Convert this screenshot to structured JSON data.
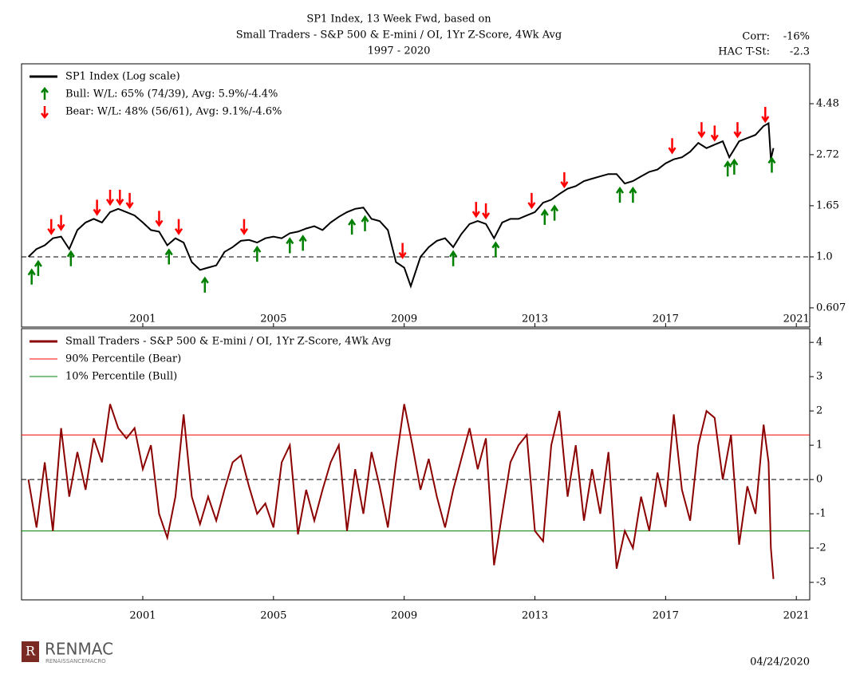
{
  "header": {
    "title": [
      "SP1 Index, 13 Week Fwd, based on",
      "Small Traders - S&P 500 & E-mini / OI, 1Yr Z-Score, 4Wk Avg",
      "1997 - 2020"
    ],
    "stats": [
      {
        "label": "Corr:",
        "value": "-16%"
      },
      {
        "label": "HAC T-St:",
        "value": "-2.3"
      }
    ]
  },
  "chart_data": [
    {
      "type": "line",
      "log_scale": true,
      "xlim": [
        1997.29,
        2021.41
      ],
      "ylim": [
        0.503,
        6.62
      ],
      "xticks": [
        2001,
        2005,
        2009,
        2013,
        2017,
        2021
      ],
      "yticks": [
        0.607,
        {
          "value": 1,
          "label": "1.0"
        },
        1.65,
        2.72,
        4.48
      ],
      "reference_line": 1,
      "legend": "upper left",
      "series": [
        {
          "name": "SP1 Index (Log scale)",
          "color": "#000000",
          "marker": "line",
          "x": [
            1997.5,
            1997.75,
            1998.0,
            1998.25,
            1998.5,
            1998.75,
            1999.0,
            1999.25,
            1999.5,
            1999.75,
            2000.0,
            2000.25,
            2000.5,
            2000.75,
            2001.0,
            2001.25,
            2001.5,
            2001.75,
            2002.0,
            2002.25,
            2002.5,
            2002.75,
            2003.0,
            2003.25,
            2003.5,
            2003.75,
            2004.0,
            2004.25,
            2004.5,
            2004.75,
            2005.0,
            2005.25,
            2005.5,
            2005.75,
            2006.0,
            2006.25,
            2006.5,
            2006.75,
            2007.0,
            2007.25,
            2007.5,
            2007.75,
            2008.0,
            2008.25,
            2008.5,
            2008.75,
            2009.0,
            2009.2,
            2009.5,
            2009.75,
            2010.0,
            2010.25,
            2010.5,
            2010.75,
            2011.0,
            2011.25,
            2011.5,
            2011.75,
            2012.0,
            2012.25,
            2012.5,
            2012.75,
            2013.0,
            2013.25,
            2013.5,
            2013.75,
            2014.0,
            2014.25,
            2014.5,
            2014.75,
            2015.0,
            2015.25,
            2015.5,
            2015.75,
            2016.0,
            2016.25,
            2016.5,
            2016.75,
            2017.0,
            2017.25,
            2017.5,
            2017.75,
            2018.0,
            2018.25,
            2018.5,
            2018.75,
            2018.95,
            2019.25,
            2019.5,
            2019.75,
            2020.0,
            2020.15,
            2020.22,
            2020.3
          ],
          "values": [
            1.0,
            1.08,
            1.12,
            1.2,
            1.22,
            1.08,
            1.3,
            1.4,
            1.45,
            1.4,
            1.55,
            1.6,
            1.55,
            1.5,
            1.4,
            1.3,
            1.28,
            1.12,
            1.2,
            1.15,
            0.95,
            0.88,
            0.9,
            0.92,
            1.05,
            1.1,
            1.17,
            1.18,
            1.15,
            1.2,
            1.22,
            1.2,
            1.26,
            1.28,
            1.32,
            1.35,
            1.3,
            1.4,
            1.48,
            1.55,
            1.6,
            1.62,
            1.45,
            1.42,
            1.3,
            0.95,
            0.9,
            0.75,
            1.0,
            1.1,
            1.17,
            1.2,
            1.1,
            1.25,
            1.38,
            1.42,
            1.38,
            1.2,
            1.4,
            1.45,
            1.45,
            1.5,
            1.55,
            1.7,
            1.75,
            1.85,
            1.95,
            2.0,
            2.1,
            2.15,
            2.2,
            2.25,
            2.25,
            2.05,
            2.1,
            2.2,
            2.3,
            2.35,
            2.5,
            2.6,
            2.65,
            2.8,
            3.05,
            2.9,
            3.0,
            3.1,
            2.65,
            3.1,
            3.2,
            3.3,
            3.6,
            3.7,
            2.6,
            2.9
          ]
        },
        {
          "name": "Bull:   W/L: 65% (74/39), Avg: 5.9%/-4.4%",
          "color": "#008000",
          "marker": "arrow-up",
          "x": [
            1997.6,
            1997.8,
            1998.8,
            2001.8,
            2002.9,
            2004.5,
            2005.5,
            2005.9,
            2007.4,
            2007.8,
            2010.5,
            2011.8,
            2013.3,
            2013.6,
            2015.6,
            2016.0,
            2018.9,
            2019.1,
            2020.25
          ],
          "values": [
            0.92,
            1.0,
            1.1,
            1.12,
            0.85,
            1.15,
            1.25,
            1.28,
            1.5,
            1.55,
            1.1,
            1.2,
            1.65,
            1.72,
            2.05,
            2.05,
            2.65,
            2.7,
            2.75
          ]
        },
        {
          "name": "Bear:   W/L: 48% (56/61), Avg: 9.1%/-4.6%",
          "color": "#ff0000",
          "marker": "arrow-down",
          "x": [
            1998.2,
            1998.5,
            1999.6,
            2000.0,
            2000.3,
            2000.6,
            2001.5,
            2002.1,
            2004.1,
            2008.95,
            2011.2,
            2011.5,
            2012.9,
            2013.9,
            2017.2,
            2018.1,
            2018.5,
            2019.2,
            2020.05
          ],
          "values": [
            1.2,
            1.25,
            1.45,
            1.6,
            1.6,
            1.55,
            1.3,
            1.2,
            1.2,
            0.95,
            1.42,
            1.4,
            1.55,
            1.9,
            2.65,
            3.1,
            3.0,
            3.1,
            3.6
          ]
        }
      ]
    },
    {
      "type": "line",
      "xlim": [
        1997.29,
        2021.41
      ],
      "ylim": [
        -3.51,
        4.4
      ],
      "xticks": [
        2001,
        2005,
        2009,
        2013,
        2017,
        2021
      ],
      "yticks": [
        -3,
        -2,
        -1,
        0,
        1,
        2,
        3,
        4
      ],
      "reference_line": 0,
      "legend": "upper left",
      "series": [
        {
          "name": "Small Traders - S&P 500 & E-mini / OI, 1Yr Z-Score, 4Wk Avg",
          "color": "#8b0000",
          "marker": "line",
          "x": [
            1997.5,
            1997.75,
            1998.0,
            1998.25,
            1998.5,
            1998.75,
            1999.0,
            1999.25,
            1999.5,
            1999.75,
            2000.0,
            2000.25,
            2000.5,
            2000.75,
            2001.0,
            2001.25,
            2001.5,
            2001.75,
            2002.0,
            2002.25,
            2002.5,
            2002.75,
            2003.0,
            2003.25,
            2003.5,
            2003.75,
            2004.0,
            2004.25,
            2004.5,
            2004.75,
            2005.0,
            2005.25,
            2005.5,
            2005.75,
            2006.0,
            2006.25,
            2006.5,
            2006.75,
            2007.0,
            2007.25,
            2007.5,
            2007.75,
            2008.0,
            2008.25,
            2008.5,
            2008.75,
            2009.0,
            2009.25,
            2009.5,
            2009.75,
            2010.0,
            2010.25,
            2010.5,
            2010.75,
            2011.0,
            2011.25,
            2011.5,
            2011.75,
            2012.0,
            2012.25,
            2012.5,
            2012.75,
            2013.0,
            2013.25,
            2013.5,
            2013.75,
            2014.0,
            2014.25,
            2014.5,
            2014.75,
            2015.0,
            2015.25,
            2015.5,
            2015.75,
            2016.0,
            2016.25,
            2016.5,
            2016.75,
            2017.0,
            2017.25,
            2017.5,
            2017.75,
            2018.0,
            2018.25,
            2018.5,
            2018.75,
            2019.0,
            2019.25,
            2019.5,
            2019.75,
            2020.0,
            2020.15,
            2020.22,
            2020.3
          ],
          "values": [
            0,
            -1.4,
            0.5,
            -1.5,
            1.5,
            -0.5,
            0.8,
            -0.3,
            1.2,
            0.5,
            2.2,
            1.5,
            1.2,
            1.5,
            0.3,
            1.0,
            -1.0,
            -1.7,
            -0.5,
            1.9,
            -0.5,
            -1.3,
            -0.5,
            -1.2,
            -0.3,
            0.5,
            0.7,
            -0.2,
            -1.0,
            -0.7,
            -1.4,
            0.5,
            1.0,
            -1.6,
            -0.3,
            -1.2,
            -0.3,
            0.5,
            1.0,
            -1.5,
            0.3,
            -1.0,
            0.8,
            -0.2,
            -1.4,
            0.5,
            2.2,
            1.0,
            -0.3,
            0.6,
            -0.5,
            -1.4,
            -0.3,
            0.6,
            1.5,
            0.3,
            1.2,
            -2.5,
            -1.0,
            0.5,
            1.0,
            1.3,
            -1.5,
            -1.8,
            1.0,
            2.0,
            -0.5,
            1.0,
            -1.2,
            0.3,
            -1.0,
            0.8,
            -2.6,
            -1.5,
            -2.0,
            -0.5,
            -1.5,
            0.2,
            -0.8,
            1.9,
            -0.3,
            -1.2,
            1.0,
            2.0,
            1.8,
            0.0,
            1.3,
            -1.9,
            -0.2,
            -1.0,
            1.6,
            0.5,
            -2.0,
            -2.9
          ]
        }
      ],
      "hlines": [
        {
          "name": "90% Percentile (Bear)",
          "value": 1.3,
          "color": "#ff0000"
        },
        {
          "name": "10% Percentile (Bull)",
          "value": -1.5,
          "color": "#008000"
        }
      ]
    }
  ],
  "footer": {
    "logo": "RENMAC",
    "logo_sub": "RENAISSANCEMACRO",
    "logo_letter": "R",
    "date": "04/24/2020"
  }
}
